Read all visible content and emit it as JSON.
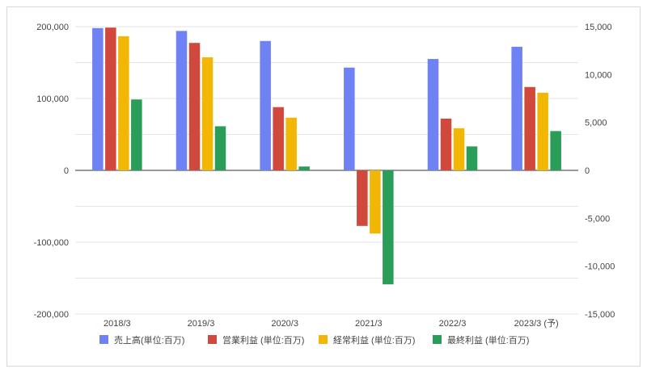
{
  "chart_data": {
    "type": "bar",
    "categories": [
      "2018/3",
      "2019/3",
      "2020/3",
      "2021/3",
      "2022/3",
      "2023/3 (予)"
    ],
    "series": [
      {
        "name": "売上高(単位:百万)",
        "axis": "left",
        "color": "#6f82f4",
        "values": [
          198000,
          194000,
          180000,
          143000,
          155000,
          172000
        ]
      },
      {
        "name": "営業利益 (単位:百万)",
        "axis": "right",
        "color": "#d1483d",
        "values": [
          14900,
          13300,
          6600,
          -5800,
          5400,
          8700
        ]
      },
      {
        "name": "経常利益 (単位:百万)",
        "axis": "right",
        "color": "#f2b605",
        "values": [
          14000,
          11800,
          5500,
          -6600,
          4400,
          8100
        ]
      },
      {
        "name": "最終利益 (単位:百万)",
        "axis": "right",
        "color": "#2a9d58",
        "values": [
          7400,
          4600,
          400,
          -11900,
          2500,
          4100
        ]
      }
    ],
    "left_axis": {
      "ylim": [
        -200000,
        200000
      ],
      "ticks": [
        "200,000",
        "100,000",
        "0",
        "-100,000",
        "-200,000"
      ]
    },
    "right_axis": {
      "ylim": [
        -15000,
        15000
      ],
      "ticks": [
        "15,000",
        "10,000",
        "5,000",
        "0",
        "-5,000",
        "-10,000",
        "-15,000"
      ]
    },
    "grid": true,
    "legend_position": "bottom"
  }
}
